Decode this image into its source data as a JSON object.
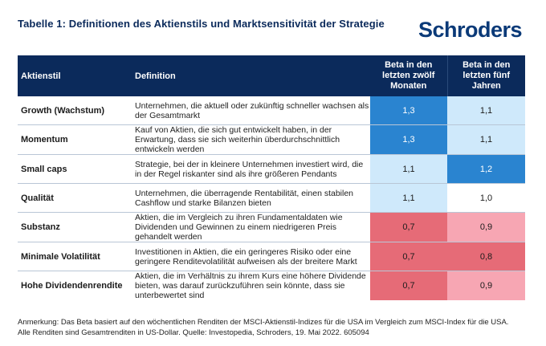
{
  "title": "Tabelle 1: Definitionen des Aktienstils und Marktsensitivität der Strategie",
  "logo_text": "Schroders",
  "headers": {
    "style": "Aktienstil",
    "definition": "Definition",
    "beta12_line1": "Beta in den",
    "beta12_line2": "letzten zwölf",
    "beta12_line3": "Monaten",
    "beta5_line1": "Beta in den",
    "beta5_line2": "letzten fünf",
    "beta5_line3": "Jahren"
  },
  "rows": [
    {
      "style": "Growth (Wachstum)",
      "definition": "Unternehmen, die aktuell oder zukünftig schneller wachsen als der Gesamtmarkt",
      "beta12": "1,3",
      "beta5": "1,1"
    },
    {
      "style": "Momentum",
      "definition": "Kauf von Aktien, die sich gut entwickelt haben, in der Erwartung, dass sie sich weiterhin überdurchschnittlich entwickeln werden",
      "beta12": "1,3",
      "beta5": "1,1"
    },
    {
      "style": "Small caps",
      "definition": "Strategie, bei der in kleinere Unternehmen investiert wird, die in der Regel riskanter sind als ihre größeren Pendants",
      "beta12": "1,1",
      "beta5": "1,2"
    },
    {
      "style": "Qualität",
      "definition": "Unternehmen, die überragende Rentabilität, einen stabilen Cashflow und starke Bilanzen bieten",
      "beta12": "1,1",
      "beta5": "1,0"
    },
    {
      "style": "Substanz",
      "definition": "Aktien, die im Vergleich zu ihren Fundamentaldaten wie Dividenden und Gewinnen zu einem niedrigeren Preis gehandelt werden",
      "beta12": "0,7",
      "beta5": "0,9"
    },
    {
      "style": "Minimale Volatilität",
      "definition": "Investitionen in Aktien, die ein geringeres Risiko oder eine geringere Renditevolatilität aufweisen als der breitere Markt",
      "beta12": "0,7",
      "beta5": "0,8"
    },
    {
      "style": "Hohe Dividendenrendite",
      "definition": "Aktien, die im Verhältnis zu ihrem Kurs eine höhere Dividende bieten, was darauf zurückzuführen sein könnte, dass sie unterbewertet sind",
      "beta12": "0,7",
      "beta5": "0,9"
    }
  ],
  "colors": {
    "header_bg": "#0b2a5b",
    "high_strong": "#2a84d0",
    "high_light": "#cfe9fb",
    "low_strong": "#e66b77",
    "low_light": "#f7a6b3"
  },
  "note_line1": "Anmerkung: Das Beta basiert auf den wöchentlichen Renditen der MSCI-Aktienstil-Indizes für die USA im Vergleich zum MSCI-Index für die USA.",
  "note_line2": "Alle Renditen sind Gesamtrenditen in US-Dollar. Quelle: Investopedia, Schroders, 19. Mai 2022. 605094"
}
